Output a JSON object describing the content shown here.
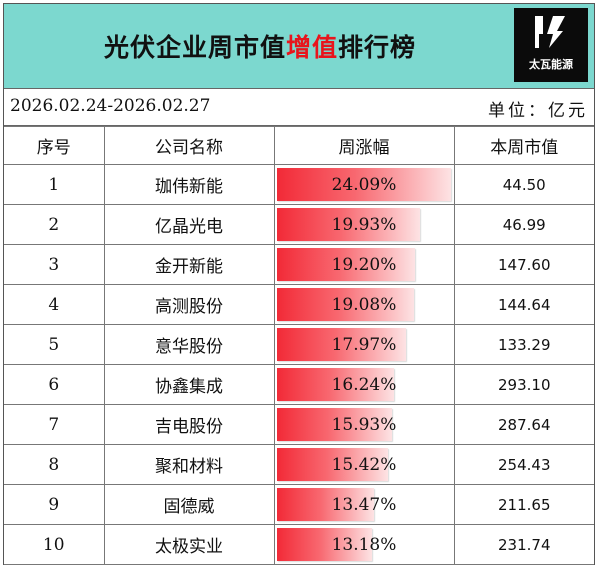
{
  "header": {
    "title_pre": "光伏企业周市值",
    "title_hl": "增值",
    "title_post": "排行榜",
    "logo_text": "太瓦能源"
  },
  "meta": {
    "date_range": "2026.02.24-2026.02.27",
    "unit": "单位：亿元"
  },
  "columns": [
    "序号",
    "公司名称",
    "周涨幅",
    "本周市值"
  ],
  "colors": {
    "header_bg": "#7cd8cf",
    "highlight": "#e8141c",
    "bar_start": "#f22a37"
  },
  "rows": [
    {
      "rank": "1",
      "name": "珈伟新能",
      "change": "24.09%",
      "change_value": 24.09,
      "mcap": "44.50"
    },
    {
      "rank": "2",
      "name": "亿晶光电",
      "change": "19.93%",
      "change_value": 19.93,
      "mcap": "46.99"
    },
    {
      "rank": "3",
      "name": "金开新能",
      "change": "19.20%",
      "change_value": 19.2,
      "mcap": "147.60"
    },
    {
      "rank": "4",
      "name": "高测股份",
      "change": "19.08%",
      "change_value": 19.08,
      "mcap": "144.64"
    },
    {
      "rank": "5",
      "name": "意华股份",
      "change": "17.97%",
      "change_value": 17.97,
      "mcap": "133.29"
    },
    {
      "rank": "6",
      "name": "协鑫集成",
      "change": "16.24%",
      "change_value": 16.24,
      "mcap": "293.10"
    },
    {
      "rank": "7",
      "name": "吉电股份",
      "change": "15.93%",
      "change_value": 15.93,
      "mcap": "287.64"
    },
    {
      "rank": "8",
      "name": "聚和材料",
      "change": "15.42%",
      "change_value": 15.42,
      "mcap": "254.43"
    },
    {
      "rank": "9",
      "name": "固德威",
      "change": "13.47%",
      "change_value": 13.47,
      "mcap": "211.65"
    },
    {
      "rank": "10",
      "name": "太极实业",
      "change": "13.18%",
      "change_value": 13.18,
      "mcap": "231.74"
    }
  ]
}
